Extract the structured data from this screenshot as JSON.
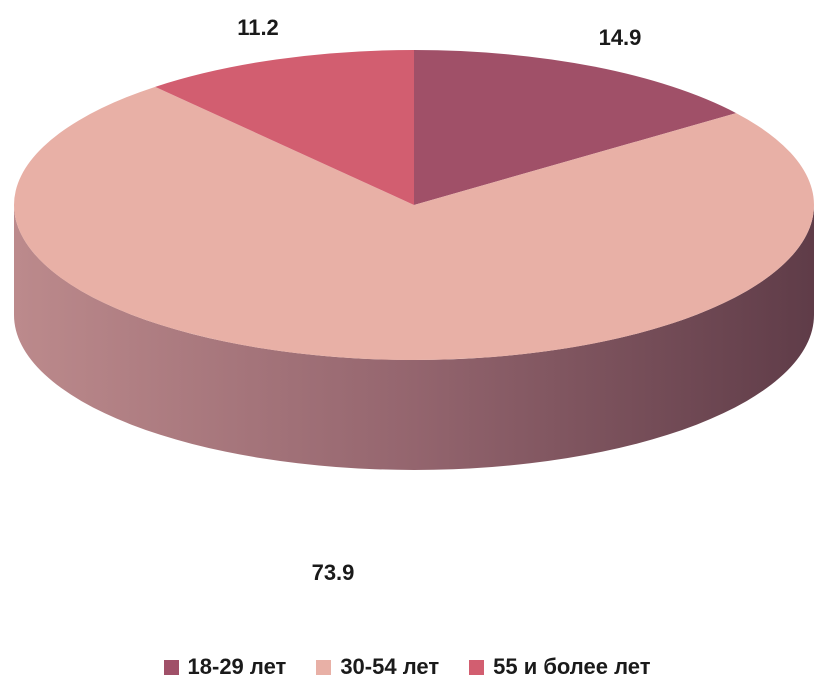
{
  "chart_data": {
    "type": "pie",
    "title": "",
    "categories": [
      "18-29 лет",
      "30-54 лет",
      "55 и более лет"
    ],
    "values": [
      14.9,
      73.9,
      11.2
    ],
    "data_labels": [
      "14.9",
      "73.9",
      "11.2"
    ],
    "colors": [
      "#a05068",
      "#e8b0a6",
      "#d25e70"
    ],
    "legend_position": "bottom",
    "style": "3d-tilted"
  },
  "legend": {
    "items": [
      {
        "label": "18-29 лет",
        "color": "#a05068"
      },
      {
        "label": "30-54 лет",
        "color": "#e8b0a6"
      },
      {
        "label": "55 и более лет",
        "color": "#d25e70"
      }
    ]
  }
}
